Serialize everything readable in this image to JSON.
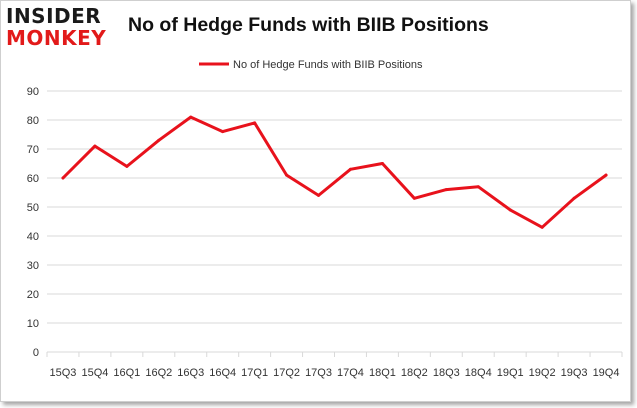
{
  "logo": {
    "line1": "INSIDER",
    "line2": "MONKEY"
  },
  "colors": {
    "series": "#e8121c",
    "grid": "#d9d9d9",
    "logo_dark": "#1a1a1a",
    "logo_red": "#e21a1a"
  },
  "chart_data": {
    "type": "line",
    "title": "No of Hedge Funds with BIIB Positions",
    "xlabel": "",
    "ylabel": "",
    "ylim": [
      0,
      90
    ],
    "yticks": [
      0,
      10,
      20,
      30,
      40,
      50,
      60,
      70,
      80,
      90
    ],
    "grid": true,
    "legend_position": "top-center",
    "categories": [
      "15Q3",
      "15Q4",
      "16Q1",
      "16Q2",
      "16Q3",
      "16Q4",
      "17Q1",
      "17Q2",
      "17Q3",
      "17Q4",
      "18Q1",
      "18Q2",
      "18Q3",
      "18Q4",
      "19Q1",
      "19Q2",
      "19Q3",
      "19Q4"
    ],
    "series": [
      {
        "name": "No of Hedge Funds with BIIB Positions",
        "values": [
          60,
          71,
          64,
          73,
          81,
          76,
          79,
          61,
          54,
          63,
          65,
          53,
          56,
          57,
          49,
          43,
          53,
          61
        ]
      }
    ]
  }
}
